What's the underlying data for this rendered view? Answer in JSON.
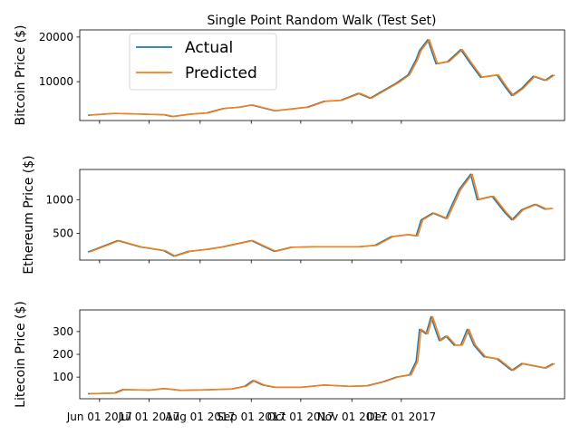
{
  "figure": {
    "title": "Single Point Random Walk (Test Set)"
  },
  "legend": {
    "placement": "upper-left of top panel",
    "entries": [
      {
        "label": "Actual",
        "color": "#1f77b4"
      },
      {
        "label": "Predicted",
        "color": "#ff7f0e"
      }
    ]
  },
  "x_axis": {
    "tick_labels": [
      "Jun 01 2017",
      "Jul 01 2017",
      "Aug 01 2017",
      "Sep 01 2017",
      "Oct 01 2017",
      "Nov 01 2017",
      "Dec 01 2017"
    ],
    "range": [
      "2017-05-20",
      "2018-03-10"
    ]
  },
  "chart_data": [
    {
      "type": "line",
      "ylabel": "Bitcoin Price ($)",
      "ylim": [
        1300,
        21600
      ],
      "yticks": [
        10000,
        20000
      ],
      "series": [
        {
          "name": "Actual",
          "color": "#1f77b4",
          "points": [
            [
              "2017-05-25",
              2500
            ],
            [
              "2017-06-10",
              2900
            ],
            [
              "2017-06-20",
              2800
            ],
            [
              "2017-07-10",
              2600
            ],
            [
              "2017-07-15",
              2200
            ],
            [
              "2017-07-25",
              2700
            ],
            [
              "2017-08-05",
              3000
            ],
            [
              "2017-08-15",
              4000
            ],
            [
              "2017-08-25",
              4300
            ],
            [
              "2017-09-01",
              4800
            ],
            [
              "2017-09-05",
              4400
            ],
            [
              "2017-09-15",
              3500
            ],
            [
              "2017-09-25",
              3900
            ],
            [
              "2017-10-05",
              4300
            ],
            [
              "2017-10-15",
              5600
            ],
            [
              "2017-10-25",
              5800
            ],
            [
              "2017-11-05",
              7400
            ],
            [
              "2017-11-12",
              6300
            ],
            [
              "2017-11-20",
              8000
            ],
            [
              "2017-11-28",
              9700
            ],
            [
              "2017-12-05",
              11500
            ],
            [
              "2017-12-10",
              15000
            ],
            [
              "2017-12-12",
              17000
            ],
            [
              "2017-12-17",
              19400
            ],
            [
              "2017-12-22",
              14000
            ],
            [
              "2017-12-29",
              14500
            ],
            [
              "2018-01-06",
              17200
            ],
            [
              "2018-01-12",
              14000
            ],
            [
              "2018-01-18",
              11000
            ],
            [
              "2018-01-28",
              11500
            ],
            [
              "2018-02-02",
              8800
            ],
            [
              "2018-02-06",
              6900
            ],
            [
              "2018-02-12",
              8500
            ],
            [
              "2018-02-19",
              11200
            ],
            [
              "2018-02-26",
              10300
            ],
            [
              "2018-03-03",
              11500
            ]
          ]
        },
        {
          "name": "Predicted",
          "color": "#ff7f0e",
          "points": [
            [
              "2017-05-26",
              2500
            ],
            [
              "2017-06-11",
              2900
            ],
            [
              "2017-06-21",
              2800
            ],
            [
              "2017-07-11",
              2600
            ],
            [
              "2017-07-16",
              2200
            ],
            [
              "2017-07-26",
              2700
            ],
            [
              "2017-08-06",
              3000
            ],
            [
              "2017-08-16",
              4000
            ],
            [
              "2017-08-26",
              4300
            ],
            [
              "2017-09-02",
              4800
            ],
            [
              "2017-09-06",
              4400
            ],
            [
              "2017-09-16",
              3500
            ],
            [
              "2017-09-26",
              3900
            ],
            [
              "2017-10-06",
              4300
            ],
            [
              "2017-10-16",
              5600
            ],
            [
              "2017-10-26",
              5800
            ],
            [
              "2017-11-06",
              7400
            ],
            [
              "2017-11-13",
              6300
            ],
            [
              "2017-11-21",
              8000
            ],
            [
              "2017-11-29",
              9700
            ],
            [
              "2017-12-06",
              11500
            ],
            [
              "2017-12-11",
              15000
            ],
            [
              "2017-12-13",
              17000
            ],
            [
              "2017-12-18",
              19400
            ],
            [
              "2017-12-23",
              14000
            ],
            [
              "2017-12-30",
              14500
            ],
            [
              "2018-01-07",
              17200
            ],
            [
              "2018-01-13",
              14000
            ],
            [
              "2018-01-19",
              11000
            ],
            [
              "2018-01-29",
              11500
            ],
            [
              "2018-02-03",
              8800
            ],
            [
              "2018-02-07",
              6900
            ],
            [
              "2018-02-13",
              8500
            ],
            [
              "2018-02-20",
              11200
            ],
            [
              "2018-02-27",
              10300
            ],
            [
              "2018-03-04",
              11500
            ]
          ]
        }
      ]
    },
    {
      "type": "line",
      "ylabel": "Ethereum Price ($)",
      "ylim": [
        100,
        1450
      ],
      "yticks": [
        500,
        1000
      ],
      "series": [
        {
          "name": "Actual",
          "color": "#1f77b4",
          "points": [
            [
              "2017-05-25",
              220
            ],
            [
              "2017-06-12",
              390
            ],
            [
              "2017-06-25",
              300
            ],
            [
              "2017-07-10",
              240
            ],
            [
              "2017-07-16",
              160
            ],
            [
              "2017-07-25",
              230
            ],
            [
              "2017-08-05",
              260
            ],
            [
              "2017-08-15",
              300
            ],
            [
              "2017-09-01",
              390
            ],
            [
              "2017-09-15",
              230
            ],
            [
              "2017-09-25",
              290
            ],
            [
              "2017-10-10",
              300
            ],
            [
              "2017-10-25",
              300
            ],
            [
              "2017-11-05",
              300
            ],
            [
              "2017-11-15",
              320
            ],
            [
              "2017-11-25",
              450
            ],
            [
              "2017-12-05",
              480
            ],
            [
              "2017-12-10",
              460
            ],
            [
              "2017-12-13",
              700
            ],
            [
              "2017-12-20",
              800
            ],
            [
              "2017-12-28",
              720
            ],
            [
              "2018-01-05",
              1150
            ],
            [
              "2018-01-12",
              1380
            ],
            [
              "2018-01-16",
              1000
            ],
            [
              "2018-01-25",
              1050
            ],
            [
              "2018-02-02",
              800
            ],
            [
              "2018-02-06",
              700
            ],
            [
              "2018-02-12",
              850
            ],
            [
              "2018-02-20",
              930
            ],
            [
              "2018-02-26",
              860
            ],
            [
              "2018-03-02",
              870
            ]
          ]
        },
        {
          "name": "Predicted",
          "color": "#ff7f0e",
          "points": [
            [
              "2017-05-26",
              220
            ],
            [
              "2017-06-13",
              390
            ],
            [
              "2017-06-26",
              300
            ],
            [
              "2017-07-11",
              240
            ],
            [
              "2017-07-17",
              160
            ],
            [
              "2017-07-26",
              230
            ],
            [
              "2017-08-06",
              260
            ],
            [
              "2017-08-16",
              300
            ],
            [
              "2017-09-02",
              390
            ],
            [
              "2017-09-16",
              230
            ],
            [
              "2017-09-26",
              290
            ],
            [
              "2017-10-11",
              300
            ],
            [
              "2017-10-26",
              300
            ],
            [
              "2017-11-06",
              300
            ],
            [
              "2017-11-16",
              320
            ],
            [
              "2017-11-26",
              450
            ],
            [
              "2017-12-06",
              480
            ],
            [
              "2017-12-11",
              460
            ],
            [
              "2017-12-14",
              700
            ],
            [
              "2017-12-21",
              800
            ],
            [
              "2017-12-29",
              720
            ],
            [
              "2018-01-06",
              1150
            ],
            [
              "2018-01-13",
              1380
            ],
            [
              "2018-01-17",
              1000
            ],
            [
              "2018-01-26",
              1050
            ],
            [
              "2018-02-03",
              800
            ],
            [
              "2018-02-07",
              700
            ],
            [
              "2018-02-13",
              850
            ],
            [
              "2018-02-21",
              930
            ],
            [
              "2018-02-27",
              860
            ],
            [
              "2018-03-03",
              870
            ]
          ]
        }
      ]
    },
    {
      "type": "line",
      "ylabel": "Litecoin Price ($)",
      "ylim": [
        5,
        395
      ],
      "yticks": [
        100,
        200,
        300
      ],
      "series": [
        {
          "name": "Actual",
          "color": "#1f77b4",
          "points": [
            [
              "2017-05-25",
              27
            ],
            [
              "2017-06-10",
              30
            ],
            [
              "2017-06-15",
              45
            ],
            [
              "2017-07-01",
              43
            ],
            [
              "2017-07-10",
              50
            ],
            [
              "2017-07-20",
              42
            ],
            [
              "2017-08-10",
              45
            ],
            [
              "2017-08-20",
              48
            ],
            [
              "2017-08-28",
              60
            ],
            [
              "2017-09-02",
              85
            ],
            [
              "2017-09-08",
              65
            ],
            [
              "2017-09-15",
              55
            ],
            [
              "2017-10-01",
              55
            ],
            [
              "2017-10-15",
              65
            ],
            [
              "2017-10-30",
              60
            ],
            [
              "2017-11-10",
              62
            ],
            [
              "2017-11-20",
              80
            ],
            [
              "2017-11-28",
              100
            ],
            [
              "2017-12-06",
              110
            ],
            [
              "2017-12-10",
              170
            ],
            [
              "2017-12-12",
              310
            ],
            [
              "2017-12-16",
              290
            ],
            [
              "2017-12-19",
              365
            ],
            [
              "2017-12-24",
              260
            ],
            [
              "2017-12-28",
              280
            ],
            [
              "2018-01-02",
              240
            ],
            [
              "2018-01-06",
              240
            ],
            [
              "2018-01-10",
              310
            ],
            [
              "2018-01-14",
              240
            ],
            [
              "2018-01-20",
              190
            ],
            [
              "2018-01-28",
              180
            ],
            [
              "2018-02-04",
              140
            ],
            [
              "2018-02-06",
              130
            ],
            [
              "2018-02-12",
              160
            ],
            [
              "2018-02-19",
              150
            ],
            [
              "2018-02-26",
              140
            ],
            [
              "2018-03-03",
              160
            ]
          ]
        },
        {
          "name": "Predicted",
          "color": "#ff7f0e",
          "points": [
            [
              "2017-05-26",
              27
            ],
            [
              "2017-06-11",
              30
            ],
            [
              "2017-06-16",
              45
            ],
            [
              "2017-07-02",
              43
            ],
            [
              "2017-07-11",
              50
            ],
            [
              "2017-07-21",
              42
            ],
            [
              "2017-08-11",
              45
            ],
            [
              "2017-08-21",
              48
            ],
            [
              "2017-08-29",
              60
            ],
            [
              "2017-09-03",
              85
            ],
            [
              "2017-09-09",
              65
            ],
            [
              "2017-09-16",
              55
            ],
            [
              "2017-10-02",
              55
            ],
            [
              "2017-10-16",
              65
            ],
            [
              "2017-10-31",
              60
            ],
            [
              "2017-11-11",
              62
            ],
            [
              "2017-11-21",
              80
            ],
            [
              "2017-11-29",
              100
            ],
            [
              "2017-12-07",
              110
            ],
            [
              "2017-12-11",
              170
            ],
            [
              "2017-12-13",
              310
            ],
            [
              "2017-12-17",
              290
            ],
            [
              "2017-12-20",
              365
            ],
            [
              "2017-12-25",
              260
            ],
            [
              "2017-12-29",
              280
            ],
            [
              "2018-01-03",
              240
            ],
            [
              "2018-01-07",
              240
            ],
            [
              "2018-01-11",
              310
            ],
            [
              "2018-01-15",
              240
            ],
            [
              "2018-01-21",
              190
            ],
            [
              "2018-01-29",
              180
            ],
            [
              "2018-02-05",
              140
            ],
            [
              "2018-02-07",
              130
            ],
            [
              "2018-02-13",
              160
            ],
            [
              "2018-02-20",
              150
            ],
            [
              "2018-02-27",
              140
            ],
            [
              "2018-03-04",
              160
            ]
          ]
        }
      ]
    }
  ]
}
